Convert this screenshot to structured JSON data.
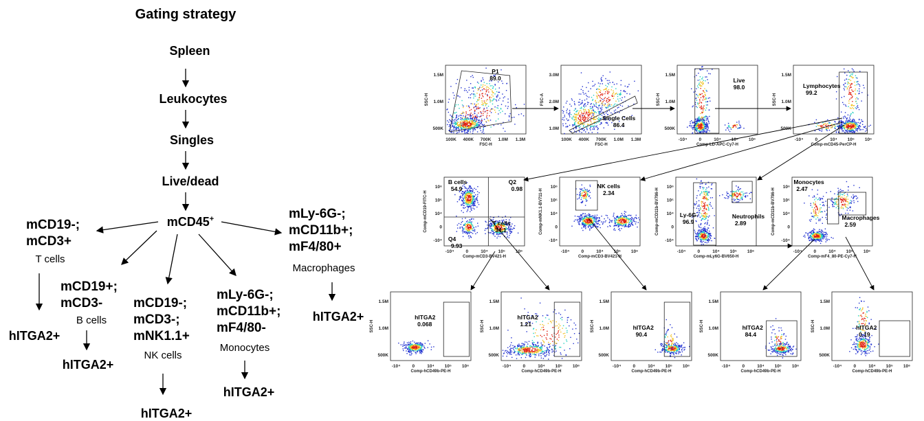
{
  "left_tree": {
    "title": "Gating strategy",
    "chain": [
      "Spleen",
      "Leukocytes",
      "Singles",
      "Live/dead"
    ],
    "mcd45": {
      "label": "mCD45",
      "sup": "+"
    },
    "branches": {
      "t_cells": {
        "lines": [
          "mCD19-;",
          "mCD3+"
        ],
        "cell": "T cells",
        "out": "hITGA2+"
      },
      "b_cells": {
        "lines": [
          "mCD19+;",
          "mCD3-"
        ],
        "cell": "B cells",
        "out": "hITGA2+"
      },
      "nk_cells": {
        "lines": [
          "mCD19-;",
          "mCD3-;",
          "mNK1.1+"
        ],
        "cell": "NK cells",
        "out": "hITGA2+"
      },
      "monocytes": {
        "lines": [
          "mLy-6G-;",
          "mCD11b+;",
          "mF4/80-"
        ],
        "cell": "Monocytes",
        "out": "hITGA2+"
      },
      "macrophages": {
        "lines": [
          "mLy-6G-;",
          "mCD11b+;",
          "mF4/80+"
        ],
        "cell": "Macrophages",
        "out": "hITGA2+"
      }
    }
  },
  "plots": {
    "p1": {
      "x_title": "FSC-H",
      "y_title": "SSC-H",
      "x_ticks": [
        "100K",
        "400K",
        "700K",
        "1.0M",
        "1.3M"
      ],
      "y_ticks": [
        "1.5M",
        "1.0M",
        "500K"
      ],
      "gates": [
        {
          "name": "P1",
          "value": "89.0"
        }
      ]
    },
    "singles": {
      "x_title": "FSC-H",
      "y_title": "FSC-A",
      "x_ticks": [
        "100K",
        "400K",
        "700K",
        "1.0M",
        "1.3M"
      ],
      "y_ticks": [
        "3.0M",
        "2.0M",
        "1.0M"
      ],
      "gates": [
        {
          "name": "Single Cells",
          "value": "86.4"
        }
      ]
    },
    "live": {
      "x_title": "Comp-LD-APC-Cy7-H",
      "y_title": "SSC-H",
      "x_ticks": [
        "-10⁴",
        "0",
        "10⁴",
        "10⁵",
        "10⁶"
      ],
      "y_ticks": [
        "1.5M",
        "1.0M",
        "500K"
      ],
      "gates": [
        {
          "name": "Live",
          "value": "98.0"
        }
      ]
    },
    "lymph": {
      "x_title": "Comp-mCD45-PerCP-H",
      "y_title": "SSC-H",
      "x_ticks": [
        "-10⁴",
        "0",
        "10⁴",
        "10⁵",
        "10⁶"
      ],
      "y_ticks": [
        "1.5M",
        "1.0M",
        "500K"
      ],
      "gates": [
        {
          "name": "Lymphocytes",
          "value": "99.2"
        }
      ]
    },
    "bt": {
      "x_title": "Comp-mCD3-BV421-H",
      "y_title": "Comp-mCD19-FITC-H",
      "x_ticks": [
        "-10⁴",
        "0",
        "10⁴",
        "10⁵",
        "10⁶"
      ],
      "y_ticks": [
        "10⁶",
        "10⁵",
        "10⁴",
        "0",
        "-10⁴"
      ],
      "gates": [
        {
          "name": "B cells",
          "value": "54.9"
        },
        {
          "name": "Q2",
          "value": "0.98"
        },
        {
          "name": "Q4",
          "value": "9.93"
        },
        {
          "name": "T cells",
          "value": "34.1"
        }
      ]
    },
    "nk": {
      "x_title": "Comp-mCD3-BV421-H",
      "y_title": "Comp-mNK1.1-BV711-H",
      "x_ticks": [
        "-10⁴",
        "0",
        "10⁴",
        "10⁵",
        "10⁶"
      ],
      "y_ticks": [
        "10⁶",
        "10⁵",
        "10⁴",
        "0",
        "-10⁴"
      ],
      "gates": [
        {
          "name": "NK cells",
          "value": "2.34"
        }
      ]
    },
    "neut": {
      "x_title": "Comp-mLy6G-BV650-H",
      "y_title": "Comp-mCD11b-BV786-H",
      "x_ticks": [
        "-10⁴",
        "0",
        "10⁴",
        "10⁵",
        "10⁶"
      ],
      "y_ticks": [
        "10⁶",
        "10⁵",
        "10⁴",
        "0",
        "-10⁴"
      ],
      "gates": [
        {
          "name": "Ly-6G-",
          "value": "96.9"
        },
        {
          "name": "Neutrophils",
          "value": "2.89"
        }
      ]
    },
    "mono": {
      "x_title": "Comp-mF4_80-PE-Cy7-H",
      "y_title": "Comp-mCD11b-BV786-H",
      "x_ticks": [
        "-10⁴",
        "0",
        "10⁴",
        "10⁵",
        "10⁶"
      ],
      "y_ticks": [
        "10⁶",
        "10⁵",
        "10⁴",
        "0",
        "-10⁴"
      ],
      "gates": [
        {
          "name": "Monocytes",
          "value": "2.47"
        },
        {
          "name": "Macrophages",
          "value": "2.59"
        }
      ]
    },
    "h1": {
      "x_title": "Comp-hCD49b-PE-H",
      "y_title": "SSC-H",
      "x_ticks": [
        "-10⁴",
        "0",
        "10⁴",
        "10⁵",
        "10⁶"
      ],
      "y_ticks": [
        "1.5M",
        "1.0M",
        "500K"
      ],
      "gates": [
        {
          "name": "hITGA2",
          "value": "0.068"
        }
      ]
    },
    "h2": {
      "x_title": "Comp-hCD49b-PE-H",
      "y_title": "SSC-H",
      "x_ticks": [
        "-10⁴",
        "0",
        "10⁴",
        "10⁵",
        "10⁶"
      ],
      "y_ticks": [
        "1.5M",
        "1.0M",
        "500K"
      ],
      "gates": [
        {
          "name": "hITGA2",
          "value": "1.21"
        }
      ]
    },
    "h3": {
      "x_title": "Comp-hCD49b-PE-H",
      "y_title": "SSC-H",
      "x_ticks": [
        "-10⁴",
        "0",
        "10⁴",
        "10⁵",
        "10⁶"
      ],
      "y_ticks": [
        "1.5M",
        "1.0M",
        "500K"
      ],
      "gates": [
        {
          "name": "hITGA2",
          "value": "90.4"
        }
      ]
    },
    "h4": {
      "x_title": "Comp-hCD49b-PE-H",
      "y_title": "SSC-H",
      "x_ticks": [
        "-10⁴",
        "0",
        "10⁴",
        "10⁵",
        "10⁶"
      ],
      "y_ticks": [
        "1.5M",
        "1.0M",
        "500K"
      ],
      "gates": [
        {
          "name": "hITGA2",
          "value": "84.4"
        }
      ]
    },
    "h5": {
      "x_title": "Comp-hCD49b-PE-H",
      "y_title": "SSC-H",
      "x_ticks": [
        "-10⁴",
        "0",
        "10⁴",
        "10⁵",
        "10⁶"
      ],
      "y_ticks": [
        "1.5M",
        "1.0M",
        "500K"
      ],
      "gates": [
        {
          "name": "hITGA2",
          "value": "0.19"
        }
      ]
    }
  },
  "colors": {
    "dot_low": "#2030d0",
    "dot_mid": "#20d0c0",
    "dot_high": "#e02010",
    "arrow": "#000000"
  }
}
